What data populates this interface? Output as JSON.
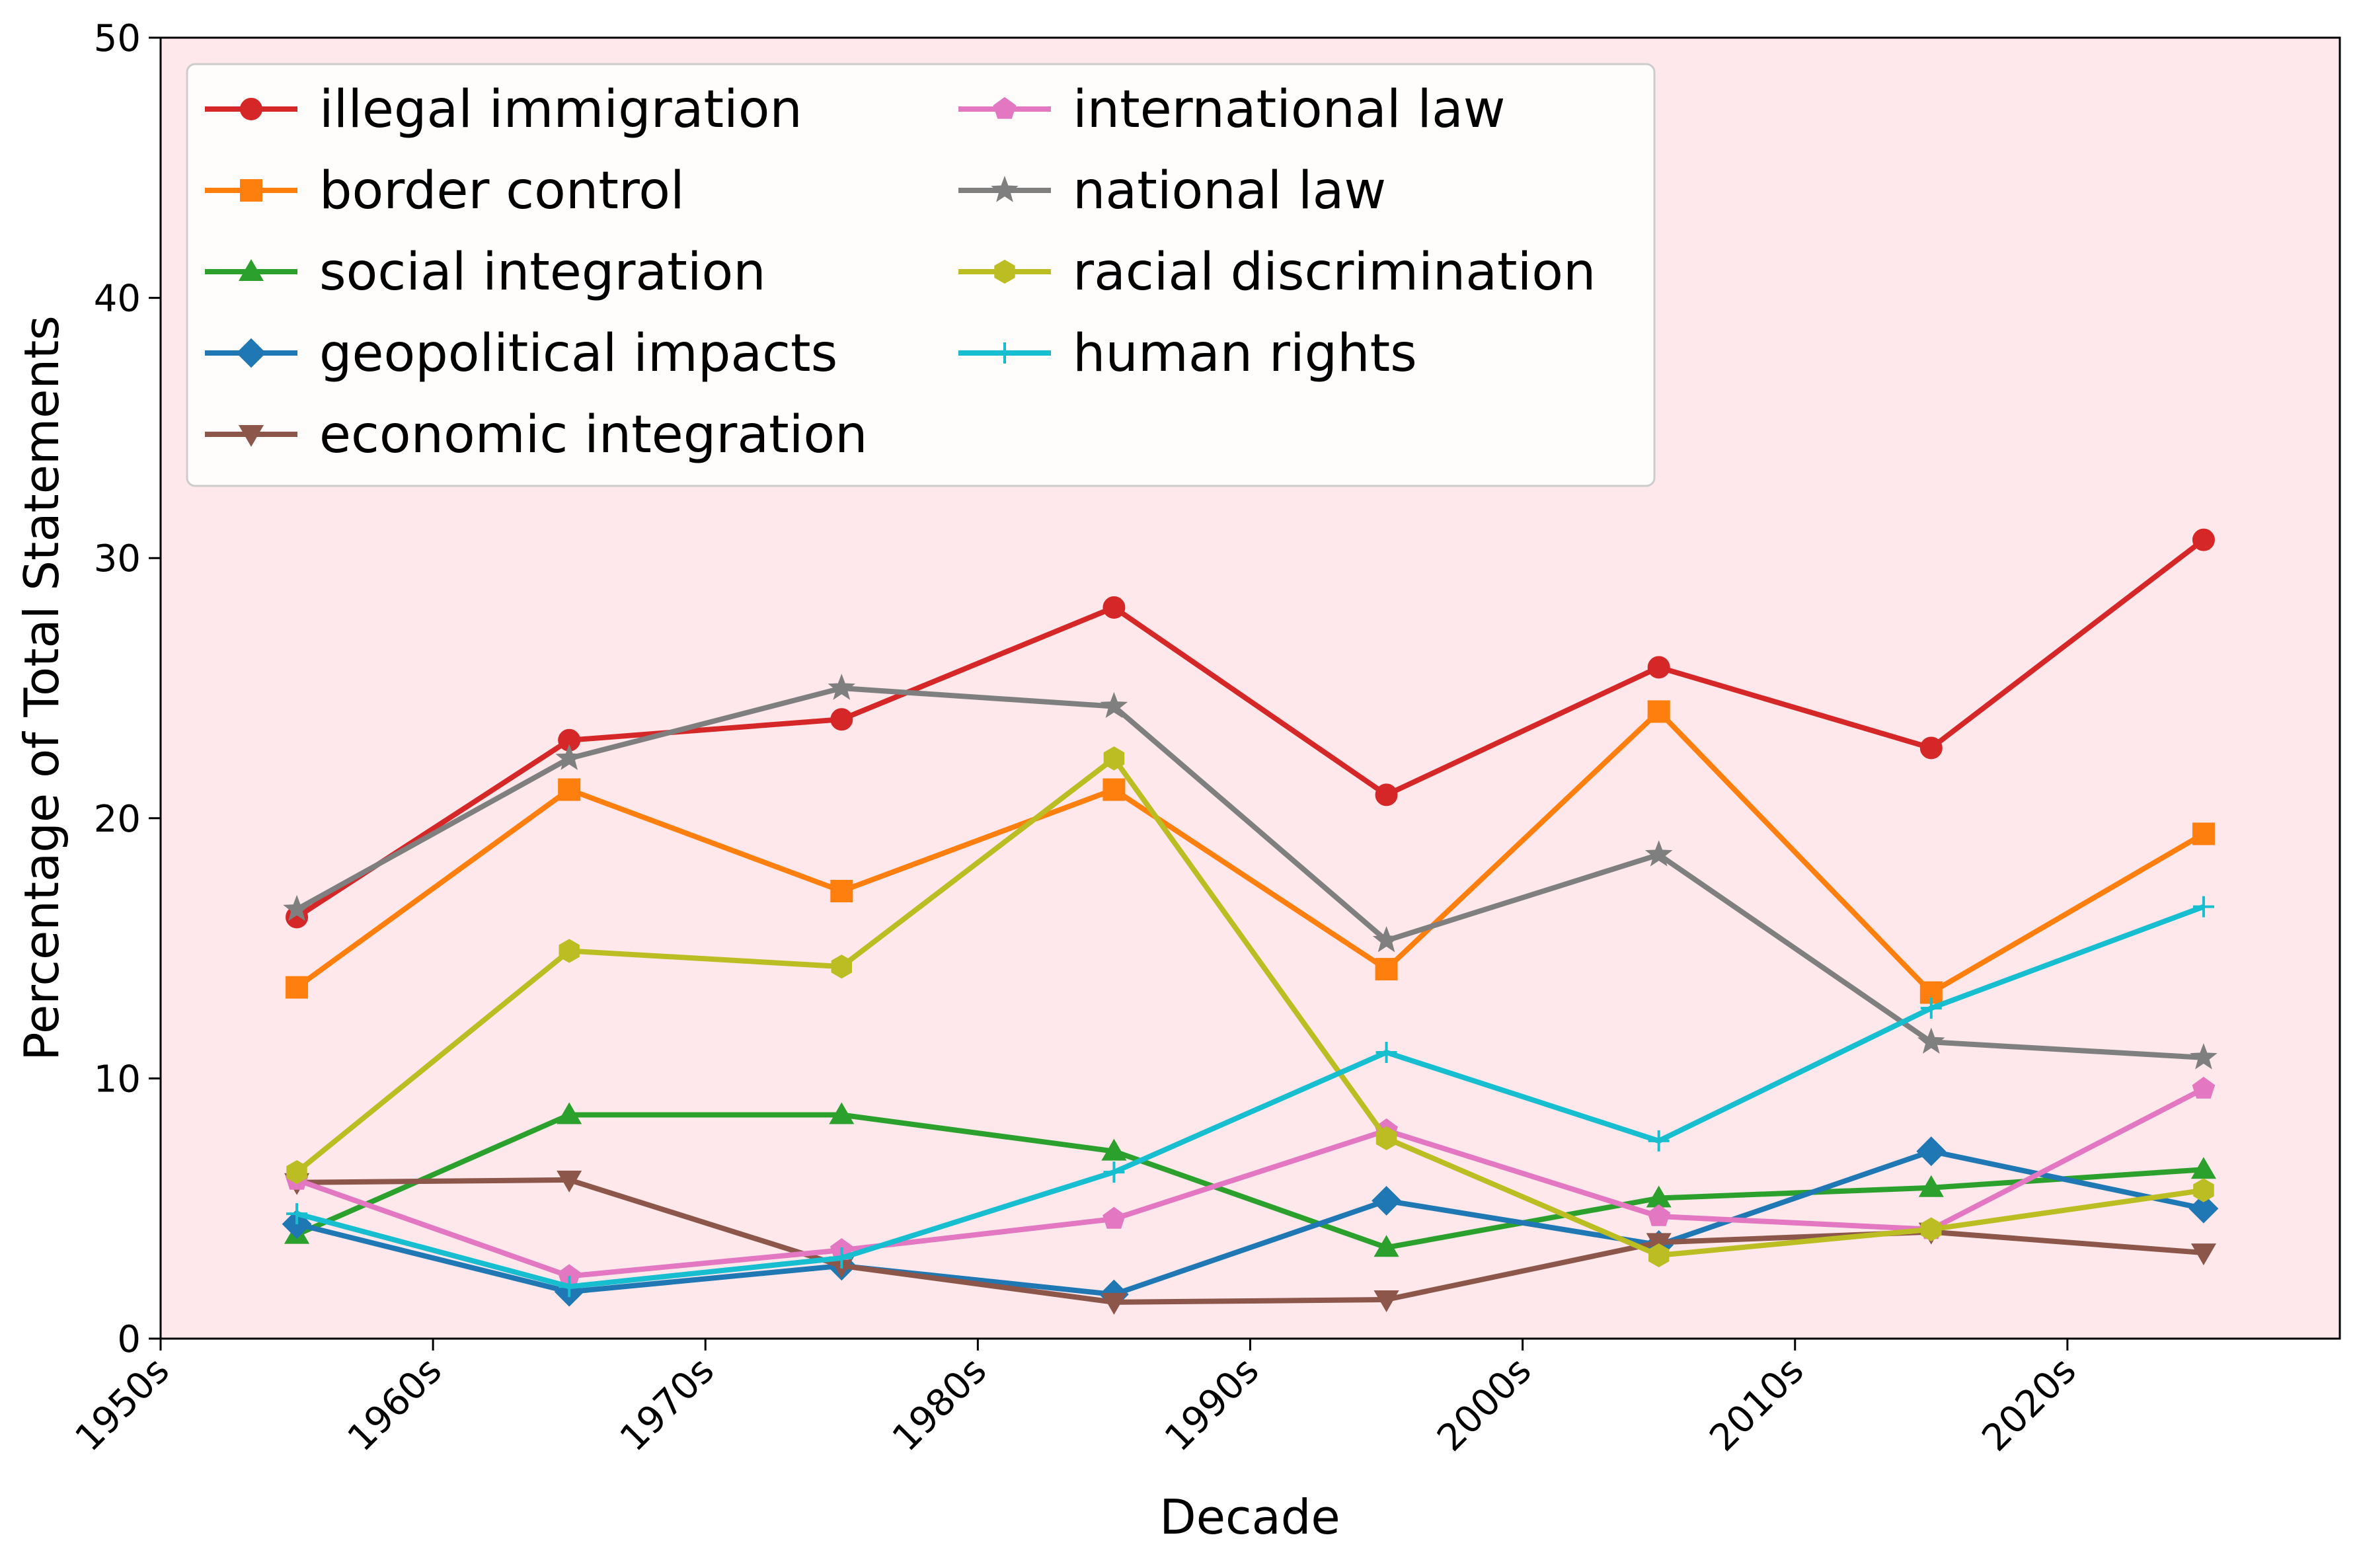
{
  "chart_data": {
    "type": "line",
    "title": "",
    "xlabel": "Decade",
    "ylabel": "Percentage of Total Statements",
    "ylim": [
      0,
      50
    ],
    "xlim": [
      1950,
      2030
    ],
    "x": [
      1955,
      1965,
      1975,
      1985,
      1995,
      2005,
      2015,
      2025
    ],
    "x_ticks": [
      {
        "value": 1950,
        "label": "1950s"
      },
      {
        "value": 1960,
        "label": "1960s"
      },
      {
        "value": 1970,
        "label": "1970s"
      },
      {
        "value": 1980,
        "label": "1980s"
      },
      {
        "value": 1990,
        "label": "1990s"
      },
      {
        "value": 2000,
        "label": "2000s"
      },
      {
        "value": 2010,
        "label": "2010s"
      },
      {
        "value": 2020,
        "label": "2020s"
      }
    ],
    "y_ticks": [
      {
        "value": 0,
        "label": "0"
      },
      {
        "value": 10,
        "label": "10"
      },
      {
        "value": 20,
        "label": "20"
      },
      {
        "value": 30,
        "label": "30"
      },
      {
        "value": 40,
        "label": "40"
      },
      {
        "value": 50,
        "label": "50"
      }
    ],
    "legend_position": "top-left",
    "background": "#ffe8eb",
    "series": [
      {
        "name": "illegal immigration",
        "color": "#d62728",
        "marker": "circle",
        "values": [
          16.2,
          23.0,
          23.8,
          28.1,
          20.9,
          25.8,
          22.7,
          30.7
        ]
      },
      {
        "name": "border control",
        "color": "#ff7f0e",
        "marker": "square",
        "values": [
          13.5,
          21.1,
          17.2,
          21.1,
          14.2,
          24.1,
          13.3,
          19.4
        ]
      },
      {
        "name": "social integration",
        "color": "#2ca02c",
        "marker": "triangle-up",
        "values": [
          4.0,
          8.6,
          8.6,
          7.2,
          3.5,
          5.4,
          5.8,
          6.5
        ]
      },
      {
        "name": "geopolitical impacts",
        "color": "#1f77b4",
        "marker": "diamond",
        "values": [
          4.4,
          1.8,
          2.8,
          1.7,
          5.3,
          3.6,
          7.2,
          5.0
        ]
      },
      {
        "name": "economic integration",
        "color": "#8c564b",
        "marker": "triangle-down",
        "values": [
          6.0,
          6.1,
          2.8,
          1.4,
          1.5,
          3.7,
          4.1,
          3.3
        ]
      },
      {
        "name": "international law",
        "color": "#e377c2",
        "marker": "pentagon",
        "values": [
          6.1,
          2.4,
          3.4,
          4.6,
          8.0,
          4.7,
          4.2,
          9.6
        ]
      },
      {
        "name": "national law",
        "color": "#7f7f7f",
        "marker": "star",
        "values": [
          16.5,
          22.3,
          25.0,
          24.3,
          15.3,
          18.6,
          11.4,
          10.8
        ]
      },
      {
        "name": "racial discrimination",
        "color": "#bcbd22",
        "marker": "hexagon",
        "values": [
          6.4,
          14.9,
          14.3,
          22.3,
          7.7,
          3.2,
          4.2,
          5.7
        ]
      },
      {
        "name": "human rights",
        "color": "#17becf",
        "marker": "plus",
        "values": [
          4.8,
          2.0,
          3.1,
          6.4,
          11.0,
          7.6,
          12.7,
          16.6
        ]
      }
    ]
  }
}
